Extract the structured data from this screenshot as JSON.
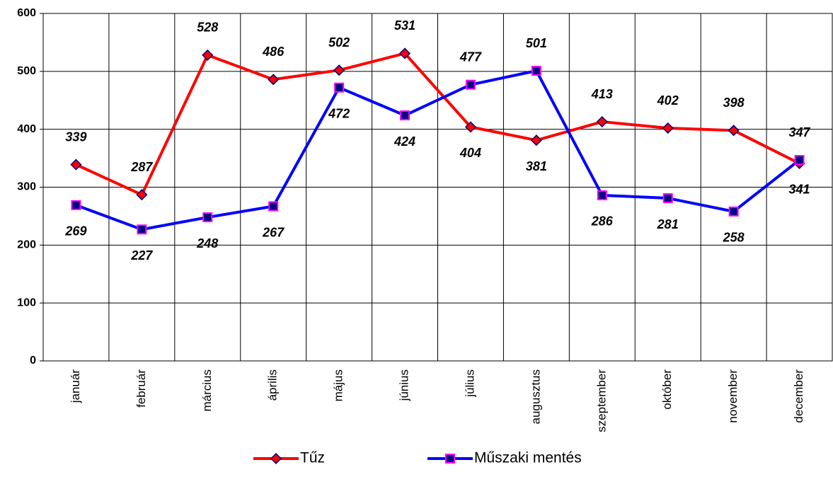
{
  "chart_data": {
    "type": "line",
    "categories": [
      "január",
      "február",
      "március",
      "április",
      "május",
      "június",
      "július",
      "augusztus",
      "szeptember",
      "október",
      "november",
      "december"
    ],
    "series": [
      {
        "name": "Tűz",
        "color": "#ff0000",
        "marker": "diamond",
        "values": [
          339,
          287,
          528,
          486,
          502,
          531,
          404,
          381,
          413,
          402,
          398,
          341
        ]
      },
      {
        "name": "Műszaki mentés",
        "color": "#0000ff",
        "marker": "square",
        "values": [
          269,
          227,
          248,
          267,
          472,
          424,
          477,
          501,
          286,
          281,
          258,
          347
        ]
      }
    ],
    "ylim": [
      0,
      600
    ],
    "yticks": [
      0,
      100,
      200,
      300,
      400,
      500,
      600
    ],
    "grid": true,
    "legend": "bottom"
  }
}
